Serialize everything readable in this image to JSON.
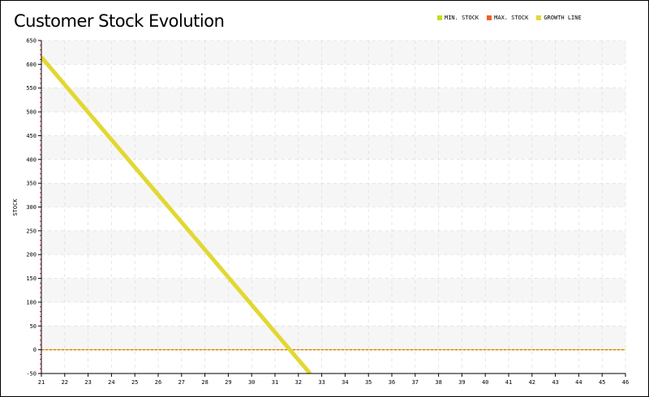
{
  "colors": {
    "min_stock": "#c8dc1e",
    "max_stock": "#f0602a",
    "growth_line": "#e2d832",
    "band": "#f6f6f6",
    "grid": "#d8d8d8",
    "axis_tick": "#e00020"
  },
  "chart_data": {
    "type": "line",
    "title": "Customer Stock Evolution",
    "xlabel": "",
    "ylabel": "STOCK",
    "xlim": [
      21,
      46
    ],
    "ylim": [
      -50,
      650
    ],
    "x_ticks": [
      21,
      22,
      23,
      24,
      25,
      26,
      27,
      28,
      29,
      30,
      31,
      32,
      33,
      34,
      35,
      36,
      37,
      38,
      39,
      40,
      41,
      42,
      43,
      44,
      45,
      46
    ],
    "y_ticks": [
      -50,
      0,
      50,
      100,
      150,
      200,
      250,
      300,
      350,
      400,
      450,
      500,
      550,
      600,
      650
    ],
    "grid": true,
    "legend_position": "top-right",
    "series": [
      {
        "name": "MIN. STOCK",
        "color": "#c8dc1e",
        "x": [
          21,
          46
        ],
        "y": [
          0,
          0
        ]
      },
      {
        "name": "MAX. STOCK",
        "color": "#f0602a",
        "x": [
          21,
          46
        ],
        "y": [
          0,
          0
        ]
      },
      {
        "name": "GROWTH LINE",
        "color": "#e2d832",
        "x": [
          21,
          32.5
        ],
        "y": [
          615,
          -50
        ]
      }
    ]
  }
}
